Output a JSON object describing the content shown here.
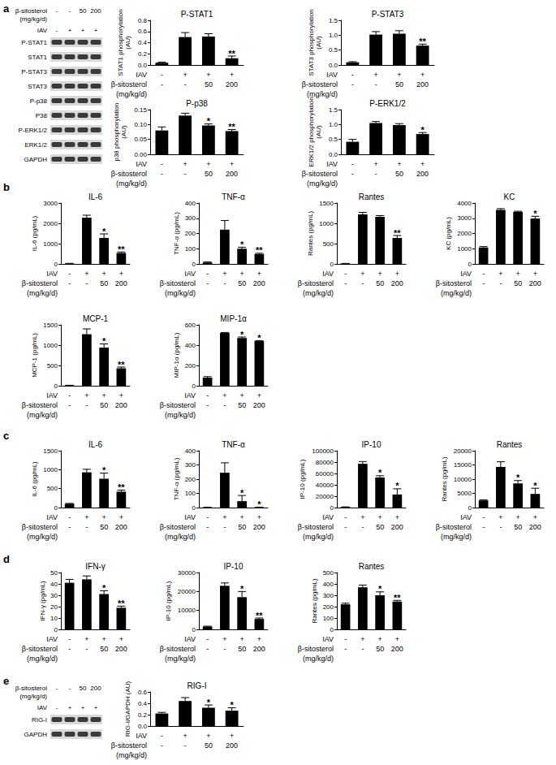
{
  "panel_labels": [
    "a",
    "b",
    "c",
    "d",
    "e"
  ],
  "blots": [
    {
      "panel": "a",
      "header": [
        {
          "label": "β-sitosterol\n(mg/kg/d)",
          "values": [
            "-",
            "-",
            "50",
            "200"
          ]
        },
        {
          "label": "IAV",
          "values": [
            "-",
            "+",
            "+",
            "+"
          ]
        }
      ],
      "bands": [
        "P-STAT1",
        "STAT1",
        "P-STAT3",
        "STAT3",
        "P-p38",
        "P38",
        "P-ERK1/2",
        "ERK1/2",
        "GAPDH"
      ]
    },
    {
      "panel": "e",
      "header": [
        {
          "label": "β-sitosterol\n(mg/kg/d)",
          "values": [
            "-",
            "-",
            "50",
            "200"
          ]
        },
        {
          "label": "IAV",
          "values": [
            "-",
            "+",
            "+",
            "+"
          ]
        }
      ],
      "bands": [
        "RIG-I",
        "GAPDH"
      ]
    }
  ],
  "chart_data": [
    {
      "type": "bar",
      "panel": "a",
      "title": "P-STAT1",
      "y_label": "STAT1 phosphorylation\n(AU)",
      "categories": [
        "-\n-",
        "+\n-",
        "+\n50",
        "+\n200"
      ],
      "row_labels": [
        "IAV",
        "β-sitosterol\n(mg/kg/d)"
      ],
      "values": [
        0.04,
        0.5,
        0.51,
        0.12
      ],
      "errors": [
        0.01,
        0.08,
        0.05,
        0.04
      ],
      "significance": [
        null,
        null,
        null,
        "**"
      ],
      "color": "#000000",
      "ylim": [
        0,
        0.8
      ],
      "yticks": [
        {
          "value": 0,
          "label": "0.0"
        },
        {
          "value": 0.2,
          "label": "0.2"
        },
        {
          "value": 0.4,
          "label": "0.4"
        },
        {
          "value": 0.6,
          "label": "0.6"
        },
        {
          "value": 0.8,
          "label": "0.8"
        }
      ],
      "grid": false
    },
    {
      "type": "bar",
      "panel": "a",
      "title": "P-STAT3",
      "y_label": "STAT3 phosphorylation\n(AU)",
      "categories": [
        "-\n-",
        "+\n-",
        "+\n50",
        "+\n200"
      ],
      "row_labels": [
        "IAV",
        "β-sitosterol\n(mg/kg/d)"
      ],
      "values": [
        0.09,
        1.02,
        1.05,
        0.65
      ],
      "errors": [
        0.02,
        0.1,
        0.1,
        0.05
      ],
      "significance": [
        null,
        null,
        null,
        "**"
      ],
      "color": "#000000",
      "ylim": [
        0,
        1.5
      ],
      "yticks": [
        {
          "value": 0,
          "label": "0.0"
        },
        {
          "value": 0.5,
          "label": "0.5"
        },
        {
          "value": 1,
          "label": "1.0"
        },
        {
          "value": 1.5,
          "label": "1.5"
        }
      ],
      "grid": false
    },
    {
      "type": "bar",
      "panel": "a",
      "title": "P-p38",
      "y_label": "p38 phosphorylation\n(AU)",
      "categories": [
        "-\n-",
        "+\n-",
        "+\n50",
        "+\n200"
      ],
      "row_labels": [
        "IAV",
        "β-sitosterol\n(mg/kg/d)"
      ],
      "values": [
        0.08,
        0.13,
        0.097,
        0.078
      ],
      "errors": [
        0.012,
        0.008,
        0.005,
        0.005
      ],
      "significance": [
        null,
        null,
        "*",
        "**"
      ],
      "color": "#000000",
      "ylim": [
        0,
        0.15
      ],
      "yticks": [
        {
          "value": 0,
          "label": "0.00"
        },
        {
          "value": 0.05,
          "label": "0.05"
        },
        {
          "value": 0.1,
          "label": "0.10"
        },
        {
          "value": 0.15,
          "label": "0.15"
        }
      ],
      "grid": false
    },
    {
      "type": "bar",
      "panel": "a",
      "title": "P-ERK1/2",
      "y_label": "ERK1/2 phosphorylation\n(AU)",
      "categories": [
        "-\n-",
        "+\n-",
        "+\n50",
        "+\n200"
      ],
      "row_labels": [
        "IAV",
        "β-sitosterol\n(mg/kg/d)"
      ],
      "values": [
        0.42,
        1.05,
        0.98,
        0.68
      ],
      "errors": [
        0.08,
        0.05,
        0.05,
        0.05
      ],
      "significance": [
        null,
        null,
        null,
        "*"
      ],
      "color": "#000000",
      "ylim": [
        0,
        1.5
      ],
      "yticks": [
        {
          "value": 0,
          "label": "0.0"
        },
        {
          "value": 0.5,
          "label": "0.5"
        },
        {
          "value": 1,
          "label": "1.0"
        },
        {
          "value": 1.5,
          "label": "1.5"
        }
      ],
      "grid": false
    },
    {
      "type": "bar",
      "panel": "b",
      "title": "IL-6",
      "y_label": "IL-6 (pg/mL)",
      "categories": [
        "-\n-",
        "+\n-",
        "+\n50",
        "+\n200"
      ],
      "row_labels": [
        "IAV",
        "β-sitosterol\n(mg/kg/d)"
      ],
      "values": [
        20,
        2280,
        1280,
        540
      ],
      "errors": [
        10,
        120,
        200,
        50
      ],
      "significance": [
        null,
        null,
        "*",
        "**"
      ],
      "color": "#000000",
      "ylim": [
        0,
        3000
      ],
      "yticks": [
        0,
        1000,
        2000,
        3000
      ],
      "grid": false
    },
    {
      "type": "bar",
      "panel": "b",
      "title": "TNF-α",
      "y_label": "TNF-α (pg/mL)",
      "categories": [
        "-\n-",
        "+\n-",
        "+\n50",
        "+\n200"
      ],
      "row_labels": [
        "IAV",
        "β-sitosterol\n(mg/kg/d)"
      ],
      "values": [
        10,
        225,
        100,
        65
      ],
      "errors": [
        3,
        60,
        10,
        5
      ],
      "significance": [
        null,
        null,
        "*",
        "**"
      ],
      "color": "#000000",
      "ylim": [
        0,
        400
      ],
      "yticks": [
        0,
        100,
        200,
        300,
        400
      ],
      "grid": false
    },
    {
      "type": "bar",
      "panel": "b",
      "title": "Rantes",
      "y_label": "Rantes (pg/mL)",
      "categories": [
        "-\n-",
        "+\n-",
        "+\n50",
        "+\n200"
      ],
      "row_labels": [
        "IAV",
        "β-sitosterol\n(mg/kg/d)"
      ],
      "values": [
        10,
        1220,
        1160,
        640
      ],
      "errors": [
        3,
        50,
        30,
        60
      ],
      "significance": [
        null,
        null,
        null,
        "**"
      ],
      "color": "#000000",
      "ylim": [
        0,
        1500
      ],
      "yticks": [
        0,
        500,
        1000,
        1500
      ],
      "grid": false
    },
    {
      "type": "bar",
      "panel": "b",
      "title": "KC",
      "y_label": "KC (pg/mL)",
      "categories": [
        "-\n-",
        "+\n-",
        "+\n50",
        "+\n200"
      ],
      "row_labels": [
        "IAV",
        "β-sitosterol\n(mg/kg/d)"
      ],
      "values": [
        1080,
        3550,
        3420,
        2980
      ],
      "errors": [
        60,
        80,
        40,
        150
      ],
      "significance": [
        null,
        null,
        null,
        "*"
      ],
      "color": "#000000",
      "ylim": [
        0,
        4000
      ],
      "yticks": [
        0,
        1000,
        2000,
        3000,
        4000
      ],
      "grid": false
    },
    {
      "type": "bar",
      "panel": "b",
      "title": "MCP-1",
      "y_label": "MCP-1 (pg/mL)",
      "categories": [
        "-\n-",
        "+\n-",
        "+\n50",
        "+\n200"
      ],
      "row_labels": [
        "IAV",
        "β-sitosterol\n(mg/kg/d)"
      ],
      "values": [
        10,
        1270,
        940,
        430
      ],
      "errors": [
        3,
        130,
        90,
        30
      ],
      "significance": [
        null,
        null,
        "*",
        "**"
      ],
      "color": "#000000",
      "ylim": [
        0,
        1500
      ],
      "yticks": [
        0,
        500,
        1000,
        1500
      ],
      "grid": false
    },
    {
      "type": "bar",
      "panel": "b",
      "title": "MIP-1α",
      "y_label": "MIP-1α (pg/mL)",
      "categories": [
        "-\n-",
        "+\n-",
        "+\n50",
        "+\n200"
      ],
      "row_labels": [
        "IAV",
        "β-sitosterol\n(mg/kg/d)"
      ],
      "values": [
        80,
        520,
        470,
        440
      ],
      "errors": [
        10,
        5,
        10,
        5
      ],
      "significance": [
        null,
        null,
        "*",
        "*"
      ],
      "color": "#000000",
      "ylim": [
        0,
        600
      ],
      "yticks": [
        0,
        200,
        400,
        600
      ],
      "grid": false
    },
    {
      "type": "bar",
      "panel": "c",
      "title": "IL-6",
      "y_label": "IL-6 (pg/mL)",
      "categories": [
        "-\n-",
        "+\n-",
        "+\n50",
        "+\n200"
      ],
      "row_labels": [
        "IAV",
        "β-sitosterol\n(mg/kg/d)"
      ],
      "values": [
        100,
        930,
        760,
        420
      ],
      "errors": [
        10,
        80,
        150,
        40
      ],
      "significance": [
        null,
        null,
        "*",
        "**"
      ],
      "color": "#000000",
      "ylim": [
        0,
        1500
      ],
      "yticks": [
        0,
        500,
        1000,
        1500
      ],
      "grid": false
    },
    {
      "type": "bar",
      "panel": "c",
      "title": "TNF-α",
      "y_label": "TNF-α (pg/mL)",
      "categories": [
        "-\n-",
        "+\n-",
        "+\n50",
        "+\n200"
      ],
      "row_labels": [
        "IAV",
        "β-sitosterol\n(mg/kg/d)"
      ],
      "values": [
        2,
        245,
        45,
        2
      ],
      "errors": [
        1,
        70,
        40,
        1
      ],
      "significance": [
        null,
        null,
        "*",
        "*"
      ],
      "color": "#000000",
      "ylim": [
        0,
        400
      ],
      "yticks": [
        0,
        100,
        200,
        300,
        400
      ],
      "grid": false
    },
    {
      "type": "bar",
      "panel": "c",
      "title": "IP-10",
      "y_label": "IP-10 (pg/mL)",
      "categories": [
        "-\n-",
        "+\n-",
        "+\n50",
        "+\n200"
      ],
      "row_labels": [
        "IAV",
        "β-sitosterol\n(mg/kg/d)"
      ],
      "values": [
        1000,
        77000,
        53000,
        23000
      ],
      "errors": [
        200,
        4000,
        3000,
        10000
      ],
      "significance": [
        null,
        null,
        "*",
        "*"
      ],
      "color": "#000000",
      "ylim": [
        0,
        100000
      ],
      "yticks": [
        0,
        20000,
        40000,
        60000,
        80000,
        100000
      ],
      "grid": false
    },
    {
      "type": "bar",
      "panel": "c",
      "title": "Rantes",
      "y_label": "Rantes (pg/mL)",
      "categories": [
        "-\n-",
        "+\n-",
        "+\n50",
        "+\n200"
      ],
      "row_labels": [
        "IAV",
        "β-sitosterol\n(mg/kg/d)"
      ],
      "values": [
        2500,
        14300,
        8500,
        4800
      ],
      "errors": [
        200,
        1800,
        1000,
        2000
      ],
      "significance": [
        null,
        null,
        "*",
        "*"
      ],
      "color": "#000000",
      "ylim": [
        0,
        20000
      ],
      "yticks": [
        0,
        5000,
        10000,
        15000,
        20000
      ],
      "grid": false
    },
    {
      "type": "bar",
      "panel": "d",
      "title": "IFN-γ",
      "y_label": "IFN-γ (pg/mL)",
      "categories": [
        "-\n-",
        "+\n-",
        "+\n50",
        "+\n200"
      ],
      "row_labels": [
        "IAV",
        "β-sitosterol\n(mg/kg/d)"
      ],
      "values": [
        41,
        44,
        31,
        19
      ],
      "errors": [
        3,
        3,
        3,
        1.5
      ],
      "significance": [
        null,
        null,
        "*",
        "**"
      ],
      "color": "#000000",
      "ylim": [
        0,
        50
      ],
      "yticks": [
        0,
        10,
        20,
        30,
        40,
        50
      ],
      "grid": false
    },
    {
      "type": "bar",
      "panel": "d",
      "title": "IP-10",
      "y_label": "IP-10 (pg/mL)",
      "categories": [
        "-\n-",
        "+\n-",
        "+\n50",
        "+\n200"
      ],
      "row_labels": [
        "IAV",
        "β-sitosterol\n(mg/kg/d)"
      ],
      "values": [
        1500,
        23000,
        17000,
        5500
      ],
      "errors": [
        200,
        1500,
        3000,
        500
      ],
      "significance": [
        null,
        null,
        "*",
        "**"
      ],
      "color": "#000000",
      "ylim": [
        0,
        30000
      ],
      "yticks": [
        0,
        10000,
        20000,
        30000
      ],
      "grid": false
    },
    {
      "type": "bar",
      "panel": "d",
      "title": "Rantes",
      "y_label": "Rantes (pg/mL)",
      "categories": [
        "-\n-",
        "+\n-",
        "+\n50",
        "+\n200"
      ],
      "row_labels": [
        "IAV",
        "β-sitosterol\n(mg/kg/d)"
      ],
      "values": [
        220,
        370,
        300,
        245
      ],
      "errors": [
        10,
        20,
        30,
        10
      ],
      "significance": [
        null,
        null,
        "*",
        "**"
      ],
      "color": "#000000",
      "ylim": [
        0,
        500
      ],
      "yticks": [
        0,
        100,
        200,
        300,
        400,
        500
      ],
      "grid": false
    },
    {
      "type": "bar",
      "panel": "e",
      "title": "RIG-I",
      "y_label": "RIG-I/GAPDH (AU)",
      "categories": [
        "-\n-",
        "+\n-",
        "+\n50",
        "+\n200"
      ],
      "row_labels": [
        "IAV",
        "β-sitosterol\n(mg/kg/d)"
      ],
      "values": [
        0.22,
        0.44,
        0.32,
        0.27
      ],
      "errors": [
        0.02,
        0.06,
        0.05,
        0.05
      ],
      "significance": [
        null,
        null,
        "*",
        "*"
      ],
      "color": "#000000",
      "ylim": [
        0,
        0.6
      ],
      "yticks": [
        {
          "value": 0,
          "label": "0.0"
        },
        {
          "value": 0.2,
          "label": "0.2"
        },
        {
          "value": 0.4,
          "label": "0.4"
        },
        {
          "value": 0.6,
          "label": "0.6"
        }
      ],
      "grid": false
    }
  ]
}
